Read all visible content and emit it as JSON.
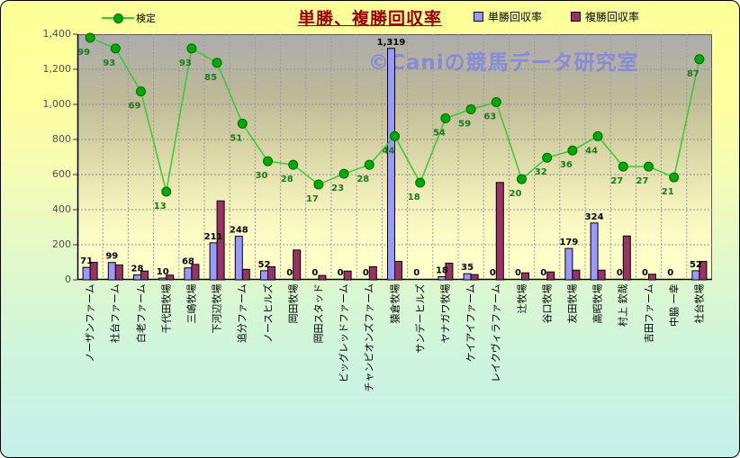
{
  "title": "単勝、複勝回収率",
  "watermark": "©Caniの競馬データ研究室",
  "legend": {
    "kentei": "検定",
    "tansho": "単勝回収率",
    "fukusho": "複勝回収率"
  },
  "colors": {
    "tansho_bar": "#9999ff",
    "fukusho_bar": "#993366",
    "kentei_line": "#33cc33",
    "kentei_marker": "#00aa00",
    "kentei_marker_edge": "#006600",
    "kentei_label": "#1a7a1a",
    "title": "#990000",
    "watermark": "#8787dd",
    "bar_edge": "#000000"
  },
  "chart_data": {
    "type": "bar",
    "title": "単勝、複勝回収率",
    "xlabel": "",
    "ylabel": "",
    "ylim": [
      0,
      1400
    ],
    "y_ticks": [
      "0",
      "200",
      "400",
      "600",
      "800",
      "1,000",
      "1,200",
      "1,400"
    ],
    "grid": true,
    "legend_position": "top",
    "categories": [
      "ノーザンファーム",
      "社台ファーム",
      "白老ファーム",
      "千代田牧場",
      "三嶋牧場",
      "下河辺牧場",
      "追分ファーム",
      "ノースヒルズ",
      "岡田牧場",
      "岡田スタッド",
      "ビッグレッドファーム",
      "チャンピオンズファーム",
      "猿倉牧場",
      "サンデーヒルズ",
      "ヤナガワ牧場",
      "ケイアイファーム",
      "レイクヴィラファーム",
      "辻牧場",
      "谷口牧場",
      "友田牧場",
      "高昭牧場",
      "村上 欽哉",
      "吉田ファーム",
      "中脇 一幸",
      "社台牧場"
    ],
    "series": [
      {
        "name": "単勝回収率",
        "type": "bar",
        "color": "#9999ff",
        "values": [
          71,
          99,
          28,
          10,
          68,
          211,
          248,
          52,
          0,
          0,
          0,
          0,
          1319,
          0,
          18,
          35,
          0,
          0,
          0,
          179,
          324,
          0,
          0,
          0,
          52
        ],
        "labels": [
          "71",
          "99",
          "28",
          "10",
          "68",
          "211",
          "248",
          "52",
          "0",
          "0",
          "0",
          "0",
          "1,319",
          "0",
          "18",
          "35",
          "0",
          "0",
          "0",
          "179",
          "324",
          "0",
          "0",
          "0",
          "52"
        ]
      },
      {
        "name": "複勝回収率",
        "type": "bar",
        "color": "#993366",
        "values": [
          100,
          85,
          50,
          27,
          88,
          450,
          60,
          75,
          170,
          25,
          50,
          75,
          105,
          0,
          95,
          30,
          555,
          40,
          45,
          55,
          55,
          250,
          32,
          0,
          105
        ]
      },
      {
        "name": "検定",
        "type": "line",
        "color": "#33cc33",
        "values": [
          99,
          93,
          69,
          13,
          93,
          85,
          51,
          30,
          28,
          17,
          23,
          28,
          44,
          18,
          54,
          59,
          63,
          20,
          32,
          36,
          44,
          27,
          27,
          21,
          87
        ],
        "plot_mapping": {
          "slope": 10.2,
          "intercept": 370
        }
      }
    ]
  }
}
